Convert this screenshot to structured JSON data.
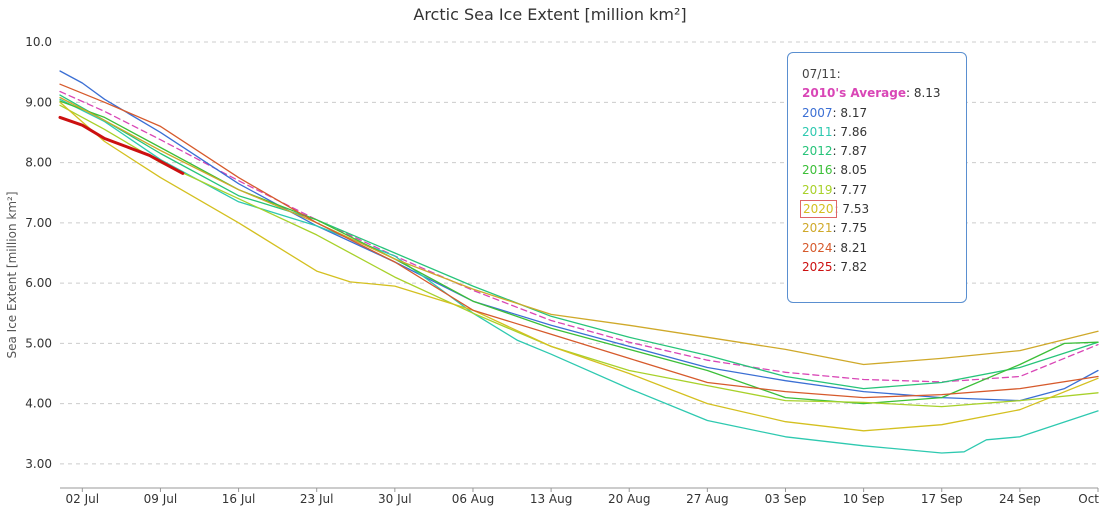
{
  "chart_data": {
    "type": "line",
    "title": "Arctic Sea Ice Extent [million km²]",
    "ylabel": "Sea Ice Extent [million km²]",
    "xlabel": "",
    "ylim": [
      2.6,
      10.2
    ],
    "y_ticks": [
      "10.0",
      "9.00",
      "8.00",
      "7.00",
      "6.00",
      "5.00",
      "4.00",
      "3.00"
    ],
    "x_day_range": [
      "06-30",
      "10-01"
    ],
    "x_tick_labels": [
      {
        "label": "02 Jul",
        "date": "07-02"
      },
      {
        "label": "09 Jul",
        "date": "07-09"
      },
      {
        "label": "16 Jul",
        "date": "07-16"
      },
      {
        "label": "23 Jul",
        "date": "07-23"
      },
      {
        "label": "30 Jul",
        "date": "07-30"
      },
      {
        "label": "06 Aug",
        "date": "08-06"
      },
      {
        "label": "13 Aug",
        "date": "08-13"
      },
      {
        "label": "20 Aug",
        "date": "08-20"
      },
      {
        "label": "27 Aug",
        "date": "08-27"
      },
      {
        "label": "03 Sep",
        "date": "09-03"
      },
      {
        "label": "10 Sep",
        "date": "09-10"
      },
      {
        "label": "17 Sep",
        "date": "09-17"
      },
      {
        "label": "24 Sep",
        "date": "09-24"
      },
      {
        "label": "Oct",
        "date": "10-01"
      }
    ],
    "grid": true,
    "tooltip": {
      "date": "07/11:",
      "entries": [
        {
          "name": "2010's Average",
          "value": "8.13",
          "color": "#d946b6",
          "bold": true
        },
        {
          "name": "2007",
          "value": "8.17",
          "color": "#3b6fd4"
        },
        {
          "name": "2011",
          "value": "7.86",
          "color": "#2ec9b0"
        },
        {
          "name": "2012",
          "value": "7.87",
          "color": "#27c47a"
        },
        {
          "name": "2016",
          "value": "8.05",
          "color": "#3cbf38"
        },
        {
          "name": "2019",
          "value": "7.77",
          "color": "#a8d12a"
        },
        {
          "name": "2020",
          "value": "7.53",
          "color": "#d4c020",
          "boxed": true
        },
        {
          "name": "2021",
          "value": "7.75",
          "color": "#cfa92a"
        },
        {
          "name": "2024",
          "value": "8.21",
          "color": "#d65a2c"
        },
        {
          "name": "2025",
          "value": "7.82",
          "color": "#cc1010"
        }
      ]
    },
    "series": [
      {
        "name": "2010's Average",
        "color": "#d946b6",
        "dashed": true,
        "width": 1.3,
        "points": [
          [
            "06-30",
            9.18
          ],
          [
            "07-04",
            8.85
          ],
          [
            "07-09",
            8.38
          ],
          [
            "07-16",
            7.7
          ],
          [
            "07-23",
            7.05
          ],
          [
            "07-30",
            6.45
          ],
          [
            "08-06",
            5.88
          ],
          [
            "08-13",
            5.38
          ],
          [
            "08-20",
            5.02
          ],
          [
            "08-27",
            4.72
          ],
          [
            "09-03",
            4.52
          ],
          [
            "09-10",
            4.4
          ],
          [
            "09-17",
            4.36
          ],
          [
            "09-24",
            4.45
          ],
          [
            "10-01",
            4.98
          ]
        ]
      },
      {
        "name": "2007",
        "color": "#3b6fd4",
        "width": 1.3,
        "points": [
          [
            "06-30",
            9.52
          ],
          [
            "07-02",
            9.32
          ],
          [
            "07-04",
            9.05
          ],
          [
            "07-09",
            8.5
          ],
          [
            "07-16",
            7.65
          ],
          [
            "07-23",
            6.95
          ],
          [
            "07-30",
            6.35
          ],
          [
            "08-06",
            5.7
          ],
          [
            "08-13",
            5.3
          ],
          [
            "08-20",
            4.95
          ],
          [
            "08-27",
            4.6
          ],
          [
            "09-03",
            4.38
          ],
          [
            "09-10",
            4.2
          ],
          [
            "09-17",
            4.1
          ],
          [
            "09-24",
            4.05
          ],
          [
            "09-28",
            4.25
          ],
          [
            "10-01",
            4.55
          ]
        ]
      },
      {
        "name": "2011",
        "color": "#2ec9b0",
        "width": 1.3,
        "points": [
          [
            "06-30",
            9.05
          ],
          [
            "07-04",
            8.68
          ],
          [
            "07-09",
            8.05
          ],
          [
            "07-16",
            7.35
          ],
          [
            "07-23",
            6.95
          ],
          [
            "07-30",
            6.45
          ],
          [
            "08-02",
            6.05
          ],
          [
            "08-06",
            5.5
          ],
          [
            "08-10",
            5.05
          ],
          [
            "08-13",
            4.82
          ],
          [
            "08-20",
            4.25
          ],
          [
            "08-27",
            3.72
          ],
          [
            "09-03",
            3.45
          ],
          [
            "09-10",
            3.3
          ],
          [
            "09-17",
            3.18
          ],
          [
            "09-19",
            3.2
          ],
          [
            "09-21",
            3.4
          ],
          [
            "09-24",
            3.45
          ],
          [
            "10-01",
            3.88
          ]
        ]
      },
      {
        "name": "2012",
        "color": "#27c47a",
        "width": 1.3,
        "points": [
          [
            "06-30",
            9.12
          ],
          [
            "07-04",
            8.7
          ],
          [
            "07-09",
            8.15
          ],
          [
            "07-16",
            7.45
          ],
          [
            "07-23",
            7.05
          ],
          [
            "07-30",
            6.5
          ],
          [
            "08-06",
            5.95
          ],
          [
            "08-13",
            5.45
          ],
          [
            "08-20",
            5.1
          ],
          [
            "08-27",
            4.8
          ],
          [
            "09-03",
            4.45
          ],
          [
            "09-10",
            4.25
          ],
          [
            "09-17",
            4.35
          ],
          [
            "09-24",
            4.6
          ],
          [
            "10-01",
            5.02
          ]
        ]
      },
      {
        "name": "2016",
        "color": "#3cbf38",
        "width": 1.3,
        "points": [
          [
            "06-30",
            9.02
          ],
          [
            "07-04",
            8.75
          ],
          [
            "07-09",
            8.25
          ],
          [
            "07-16",
            7.55
          ],
          [
            "07-23",
            7.05
          ],
          [
            "07-30",
            6.4
          ],
          [
            "08-06",
            5.7
          ],
          [
            "08-13",
            5.25
          ],
          [
            "08-20",
            4.9
          ],
          [
            "08-27",
            4.55
          ],
          [
            "09-03",
            4.1
          ],
          [
            "09-10",
            4.0
          ],
          [
            "09-17",
            4.1
          ],
          [
            "09-24",
            4.65
          ],
          [
            "09-28",
            5.0
          ],
          [
            "10-01",
            5.02
          ]
        ]
      },
      {
        "name": "2019",
        "color": "#a8d12a",
        "width": 1.3,
        "points": [
          [
            "06-30",
            8.95
          ],
          [
            "07-04",
            8.55
          ],
          [
            "07-09",
            8.0
          ],
          [
            "07-16",
            7.4
          ],
          [
            "07-23",
            6.8
          ],
          [
            "07-30",
            6.1
          ],
          [
            "08-06",
            5.5
          ],
          [
            "08-13",
            4.95
          ],
          [
            "08-20",
            4.55
          ],
          [
            "08-27",
            4.3
          ],
          [
            "09-03",
            4.05
          ],
          [
            "09-10",
            4.02
          ],
          [
            "09-17",
            3.95
          ],
          [
            "09-24",
            4.05
          ],
          [
            "10-01",
            4.18
          ]
        ]
      },
      {
        "name": "2020",
        "color": "#d4c020",
        "width": 1.3,
        "points": [
          [
            "06-30",
            9.0
          ],
          [
            "07-04",
            8.35
          ],
          [
            "07-09",
            7.75
          ],
          [
            "07-16",
            7.0
          ],
          [
            "07-23",
            6.2
          ],
          [
            "07-26",
            6.02
          ],
          [
            "07-30",
            5.95
          ],
          [
            "08-06",
            5.55
          ],
          [
            "08-13",
            4.95
          ],
          [
            "08-20",
            4.5
          ],
          [
            "08-27",
            4.0
          ],
          [
            "09-03",
            3.7
          ],
          [
            "09-10",
            3.55
          ],
          [
            "09-17",
            3.65
          ],
          [
            "09-24",
            3.9
          ],
          [
            "10-01",
            4.42
          ]
        ]
      },
      {
        "name": "2021",
        "color": "#cfa92a",
        "width": 1.3,
        "points": [
          [
            "06-30",
            9.08
          ],
          [
            "07-04",
            8.7
          ],
          [
            "07-09",
            8.2
          ],
          [
            "07-16",
            7.55
          ],
          [
            "07-23",
            7.0
          ],
          [
            "07-30",
            6.4
          ],
          [
            "08-06",
            5.9
          ],
          [
            "08-13",
            5.48
          ],
          [
            "08-20",
            5.3
          ],
          [
            "08-27",
            5.1
          ],
          [
            "09-03",
            4.9
          ],
          [
            "09-10",
            4.65
          ],
          [
            "09-17",
            4.75
          ],
          [
            "09-24",
            4.88
          ],
          [
            "10-01",
            5.2
          ]
        ]
      },
      {
        "name": "2024",
        "color": "#d65a2c",
        "width": 1.3,
        "points": [
          [
            "06-30",
            9.3
          ],
          [
            "07-04",
            9.0
          ],
          [
            "07-09",
            8.6
          ],
          [
            "07-16",
            7.75
          ],
          [
            "07-23",
            7.0
          ],
          [
            "07-30",
            6.35
          ],
          [
            "08-06",
            5.55
          ],
          [
            "08-13",
            5.15
          ],
          [
            "08-20",
            4.75
          ],
          [
            "08-27",
            4.35
          ],
          [
            "09-03",
            4.2
          ],
          [
            "09-10",
            4.1
          ],
          [
            "09-17",
            4.15
          ],
          [
            "09-24",
            4.25
          ],
          [
            "10-01",
            4.45
          ]
        ]
      },
      {
        "name": "2025",
        "color": "#cc1010",
        "width": 3,
        "points": [
          [
            "06-30",
            8.75
          ],
          [
            "07-02",
            8.62
          ],
          [
            "07-04",
            8.4
          ],
          [
            "07-06",
            8.26
          ],
          [
            "07-08",
            8.12
          ],
          [
            "07-10",
            7.92
          ],
          [
            "07-11",
            7.82
          ]
        ]
      }
    ]
  }
}
